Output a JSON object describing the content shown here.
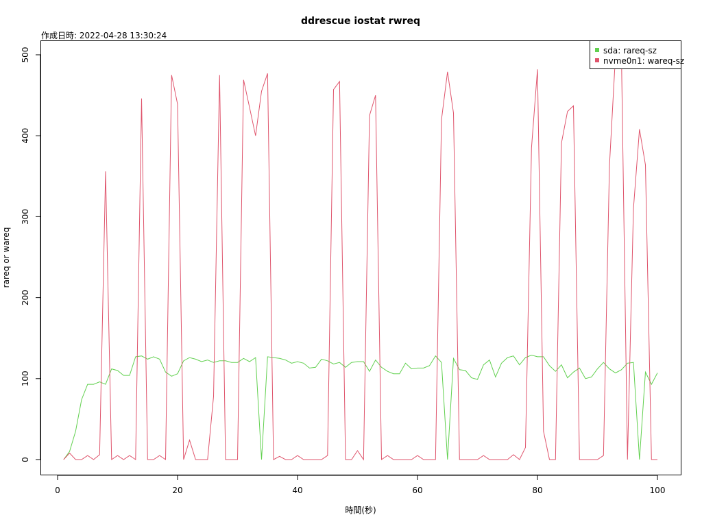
{
  "chart_data": {
    "type": "line",
    "title": "ddrescue iostat rwreq",
    "subtitle": "作成日時: 2022-04-28 13:30:24",
    "xlabel": "時間(秒)",
    "ylabel": "rareq or wareq",
    "xlim": [
      0,
      100
    ],
    "ylim": [
      0,
      500
    ],
    "xticks": [
      0,
      20,
      40,
      60,
      80,
      100
    ],
    "yticks": [
      0,
      100,
      200,
      300,
      400,
      500
    ],
    "grid": false,
    "legend_position": "top-right",
    "x": [
      1,
      2,
      3,
      4,
      5,
      6,
      7,
      8,
      9,
      10,
      11,
      12,
      13,
      14,
      15,
      16,
      17,
      18,
      19,
      20,
      21,
      22,
      23,
      24,
      25,
      26,
      27,
      28,
      29,
      30,
      31,
      32,
      33,
      34,
      35,
      36,
      37,
      38,
      39,
      40,
      41,
      42,
      43,
      44,
      45,
      46,
      47,
      48,
      49,
      50,
      51,
      52,
      53,
      54,
      55,
      56,
      57,
      58,
      59,
      60,
      61,
      62,
      63,
      64,
      65,
      66,
      67,
      68,
      69,
      70,
      71,
      72,
      73,
      74,
      75,
      76,
      77,
      78,
      79,
      80,
      81,
      82,
      83,
      84,
      85,
      86,
      87,
      88,
      89,
      90,
      91,
      92,
      93,
      94,
      95,
      96,
      97,
      98,
      99,
      100
    ],
    "series": [
      {
        "name": "sda: rareq-sz",
        "color": "#61d04f",
        "values": [
          0,
          10,
          35,
          74,
          93,
          93,
          96,
          93,
          112,
          110,
          104,
          104,
          127,
          128,
          124,
          127,
          124,
          108,
          103,
          106,
          122,
          126,
          124,
          121,
          123,
          120,
          122,
          122,
          120,
          120,
          125,
          121,
          126,
          0,
          127,
          126,
          125,
          123,
          119,
          121,
          119,
          113,
          114,
          124,
          122,
          118,
          120,
          114,
          120,
          121,
          121,
          109,
          123,
          114,
          109,
          106,
          106,
          119,
          112,
          113,
          113,
          116,
          128,
          120,
          0,
          125,
          111,
          110,
          101,
          99,
          117,
          123,
          102,
          119,
          126,
          128,
          117,
          126,
          129,
          127,
          127,
          116,
          109,
          117,
          101,
          108,
          113,
          100,
          102,
          112,
          120,
          112,
          107,
          111,
          119,
          120,
          0,
          108,
          93,
          107
        ]
      },
      {
        "name": "nvme0n1: wareq-sz",
        "color": "#df536b",
        "values": [
          0,
          8,
          0,
          0,
          5,
          0,
          6,
          356,
          0,
          5,
          0,
          5,
          0,
          446,
          0,
          0,
          5,
          0,
          475,
          439,
          0,
          24,
          0,
          0,
          0,
          78,
          475,
          0,
          0,
          0,
          469,
          435,
          400,
          455,
          477,
          0,
          4,
          0,
          0,
          5,
          0,
          0,
          0,
          0,
          5,
          457,
          467,
          0,
          0,
          11,
          0,
          425,
          450,
          0,
          5,
          0,
          0,
          0,
          0,
          5,
          0,
          0,
          0,
          420,
          479,
          428,
          0,
          0,
          0,
          0,
          5,
          0,
          0,
          0,
          0,
          6,
          0,
          15,
          385,
          482,
          35,
          0,
          0,
          391,
          430,
          437,
          0,
          0,
          0,
          0,
          5,
          363,
          500,
          500,
          0,
          310,
          408,
          364,
          0,
          0
        ]
      }
    ]
  }
}
